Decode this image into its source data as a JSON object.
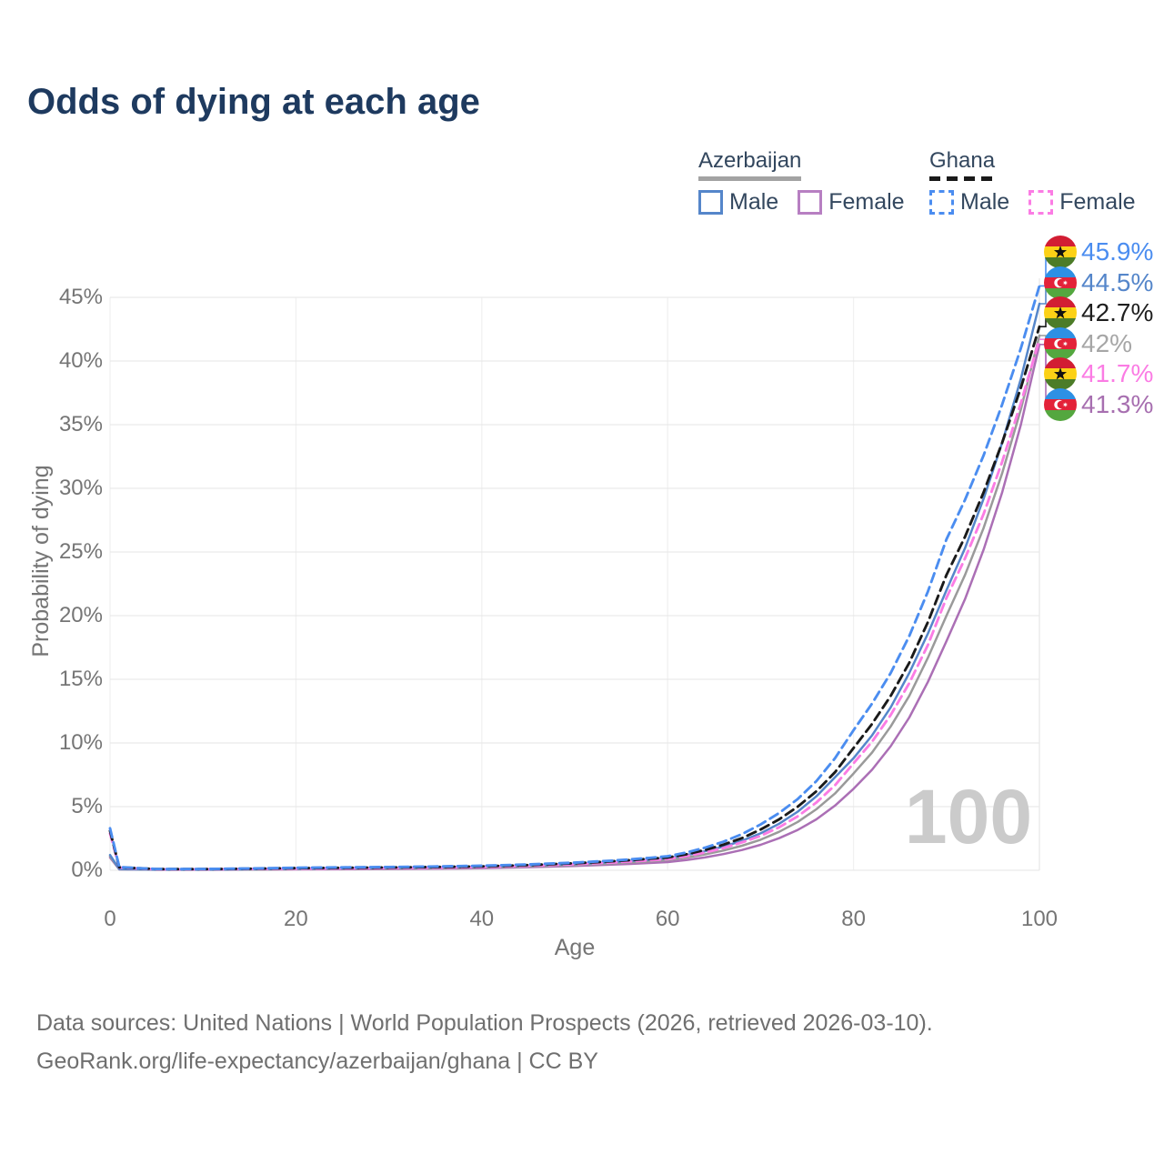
{
  "title": "Odds of dying at each age",
  "legend": {
    "azerbaijan": {
      "title": "Azerbaijan",
      "male_label": "Male",
      "female_label": "Female",
      "underline_color": "#a3a3a3",
      "underline_style": "solid",
      "male_color": "#5586ca",
      "female_color": "#b77fc2"
    },
    "ghana": {
      "title": "Ghana",
      "male_label": "Male",
      "female_label": "Female",
      "underline_color": "#1a1a1a",
      "underline_style": "dashed",
      "male_color": "#4b8df0",
      "female_color": "#fb7ce4"
    }
  },
  "chart_data": {
    "type": "line",
    "title": "Odds of dying at each age",
    "xlabel": "Age",
    "ylabel": "Probability of dying",
    "xlim": [
      0,
      100
    ],
    "ylim": [
      0,
      47
    ],
    "x_ticks": [
      0,
      20,
      40,
      60,
      80,
      100
    ],
    "x_tick_labels": [
      "0",
      "20",
      "40",
      "60",
      "80",
      "100"
    ],
    "y_ticks": [
      0,
      5,
      10,
      15,
      20,
      25,
      30,
      35,
      40,
      45
    ],
    "y_tick_labels": [
      "0%",
      "5%",
      "10%",
      "15%",
      "20%",
      "25%",
      "30%",
      "35%",
      "40%",
      "45%"
    ],
    "grid": "horizontal-strong-vertical-faint",
    "legend_position": "top-right",
    "watermark": "100",
    "ages": [
      0,
      1,
      5,
      10,
      15,
      20,
      25,
      30,
      35,
      40,
      45,
      50,
      52,
      54,
      56,
      58,
      60,
      62,
      64,
      66,
      68,
      70,
      72,
      74,
      76,
      78,
      80,
      82,
      84,
      86,
      88,
      90,
      92,
      94,
      96,
      98,
      100
    ],
    "series": [
      {
        "name": "Ghana Male",
        "id": "ghana-male",
        "color": "#4b8df0",
        "dash": true,
        "z": 6,
        "flag_icon": "ghana-flag-icon",
        "end_label": "45.9%",
        "end_value": 45.9,
        "label_color": "#4b8df0",
        "label_row": 0,
        "values": [
          3.3,
          0.25,
          0.1,
          0.1,
          0.14,
          0.2,
          0.23,
          0.26,
          0.3,
          0.36,
          0.46,
          0.6,
          0.68,
          0.76,
          0.86,
          0.97,
          1.1,
          1.39,
          1.77,
          2.24,
          2.84,
          3.6,
          4.5,
          5.6,
          7.0,
          8.8,
          11.0,
          13.1,
          15.5,
          18.4,
          21.9,
          26.0,
          29.1,
          32.6,
          36.6,
          41.0,
          45.9
        ]
      },
      {
        "name": "Azerbaijan Male",
        "id": "azerbaijan-male",
        "color": "#5586ca",
        "dash": false,
        "z": 3,
        "flag_icon": "azerbaijan-flag-icon",
        "end_label": "44.5%",
        "end_value": 44.5,
        "label_color": "#5586ca",
        "label_row": 1,
        "values": [
          1.2,
          0.09,
          0.05,
          0.05,
          0.08,
          0.13,
          0.16,
          0.19,
          0.23,
          0.29,
          0.38,
          0.5,
          0.57,
          0.64,
          0.73,
          0.83,
          0.95,
          1.19,
          1.49,
          1.86,
          2.32,
          2.9,
          3.66,
          4.61,
          5.81,
          7.31,
          8.8,
          10.6,
          12.8,
          15.5,
          18.6,
          22.0,
          25.3,
          29.2,
          33.6,
          38.6,
          44.5
        ]
      },
      {
        "name": "Ghana",
        "id": "ghana-all",
        "color": "#1a1a1a",
        "dash": true,
        "z": 5,
        "flag_icon": "ghana-flag-icon",
        "end_label": "42.7%",
        "end_value": 42.7,
        "label_color": "#1f1f1f",
        "label_row": 2,
        "values": [
          3.1,
          0.23,
          0.09,
          0.09,
          0.12,
          0.17,
          0.19,
          0.22,
          0.26,
          0.31,
          0.41,
          0.55,
          0.62,
          0.71,
          0.8,
          0.91,
          1.0,
          1.26,
          1.59,
          2.01,
          2.53,
          3.2,
          4.0,
          5.0,
          6.2,
          7.7,
          9.6,
          11.5,
          13.7,
          16.3,
          19.5,
          23.2,
          26.2,
          29.7,
          33.6,
          37.9,
          42.7
        ]
      },
      {
        "name": "Azerbaijan",
        "id": "azerbaijan-all",
        "color": "#9a9a9a",
        "dash": false,
        "z": 2,
        "flag_icon": "azerbaijan-flag-icon",
        "end_label": "42%",
        "end_value": 42.0,
        "label_color": "#a6a6a6",
        "label_row": 3,
        "values": [
          1.1,
          0.08,
          0.04,
          0.04,
          0.06,
          0.1,
          0.12,
          0.14,
          0.17,
          0.22,
          0.3,
          0.42,
          0.48,
          0.54,
          0.62,
          0.7,
          0.8,
          1.0,
          1.25,
          1.55,
          1.93,
          2.4,
          3.02,
          3.8,
          4.79,
          6.03,
          7.6,
          9.25,
          11.3,
          13.7,
          16.7,
          20.0,
          23.2,
          26.9,
          31.2,
          36.2,
          42.0
        ]
      },
      {
        "name": "Ghana Female",
        "id": "ghana-female",
        "color": "#fb7ce4",
        "dash": true,
        "z": 4,
        "flag_icon": "ghana-flag-icon",
        "end_label": "41.7%",
        "end_value": 41.7,
        "label_color": "#fb7ce4",
        "label_row": 4,
        "values": [
          2.9,
          0.21,
          0.08,
          0.08,
          0.1,
          0.13,
          0.15,
          0.18,
          0.21,
          0.26,
          0.35,
          0.48,
          0.54,
          0.61,
          0.69,
          0.78,
          0.88,
          1.11,
          1.39,
          1.74,
          2.19,
          2.7,
          3.38,
          4.24,
          5.32,
          6.68,
          8.4,
          10.1,
          12.2,
          14.7,
          17.7,
          21.4,
          24.5,
          28.0,
          32.1,
          36.7,
          41.7
        ]
      },
      {
        "name": "Azerbaijan Female",
        "id": "azerbaijan-female",
        "color": "#ab6fb5",
        "dash": false,
        "z": 1,
        "flag_icon": "azerbaijan-flag-icon",
        "end_label": "41.3%",
        "end_value": 41.3,
        "label_color": "#a76fb0",
        "label_row": 5,
        "values": [
          1.0,
          0.07,
          0.04,
          0.04,
          0.05,
          0.07,
          0.08,
          0.1,
          0.12,
          0.16,
          0.24,
          0.34,
          0.39,
          0.44,
          0.5,
          0.57,
          0.64,
          0.81,
          1.01,
          1.27,
          1.59,
          2.0,
          2.52,
          3.17,
          4.0,
          5.08,
          6.4,
          7.9,
          9.75,
          12.0,
          14.8,
          18.0,
          21.3,
          25.2,
          29.7,
          35.0,
          41.3
        ]
      }
    ]
  },
  "flags": {
    "ghana": {
      "red": "#d21d33",
      "gold": "#fcd116",
      "green": "#4c7c28",
      "star": "#111111"
    },
    "azerbaijan": {
      "blue": "#2d90e4",
      "red": "#e32239",
      "green": "#54a73f",
      "emblem": "#ffffff"
    }
  },
  "footer": {
    "line1": "Data sources: United Nations | World Population Prospects (2026, retrieved 2026-03-10).",
    "line2": "GeoRank.org/life-expectancy/azerbaijan/ghana | CC BY"
  }
}
